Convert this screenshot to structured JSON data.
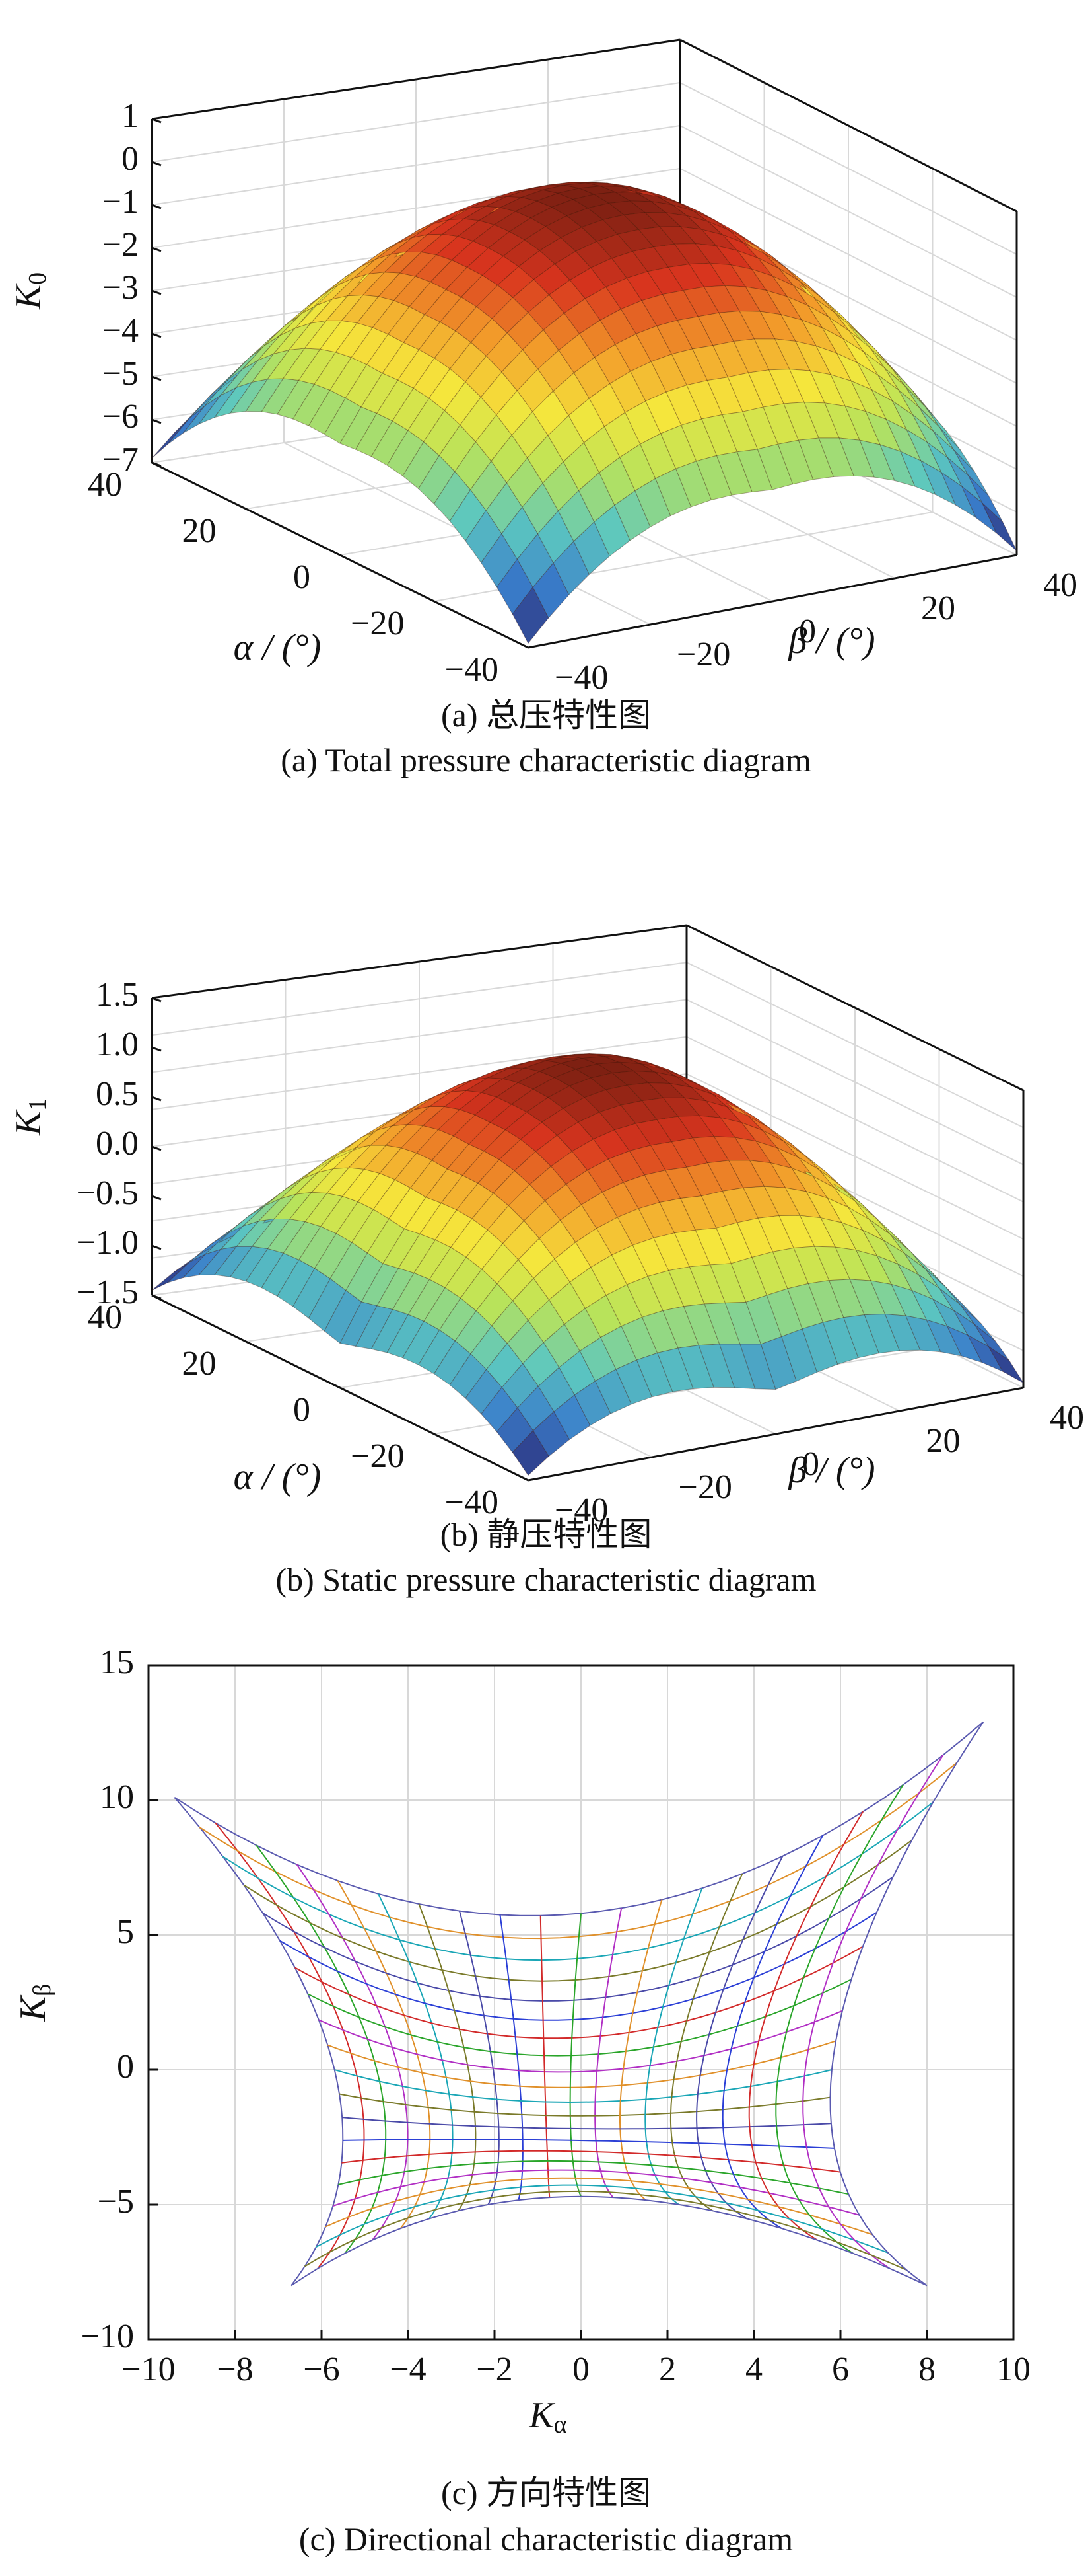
{
  "panel_a": {
    "caption_cn": "(a) 总压特性图",
    "caption_en": "(a) Total pressure characteristic diagram"
  },
  "panel_b": {
    "caption_cn": "(b) 静压特性图",
    "caption_en": "(b) Static pressure characteristic diagram"
  },
  "panel_c": {
    "caption_cn": "(c) 方向特性图",
    "caption_en": "(c) Directional characteristic diagram"
  },
  "chart_data": [
    {
      "type": "surface",
      "zlabel": "K",
      "zlabel_sub": "0",
      "xlabel": "α / (°)",
      "ylabel": "β / (°)",
      "z_ticks": [
        "1",
        "0",
        "−1",
        "−2",
        "−3",
        "−4",
        "−5",
        "−6",
        "−7"
      ],
      "zlim": [
        -7,
        1
      ],
      "alpha_ticks": [
        "40",
        "20",
        "0",
        "−20",
        "−40"
      ],
      "beta_ticks": [
        "−40",
        "−20",
        "0",
        "20",
        "40"
      ],
      "alpha_range": [
        -40,
        40
      ],
      "beta_range": [
        -40,
        40
      ],
      "z_peak": 0.4,
      "z_edge_mid": -4.4,
      "z_corner": -6.9,
      "colormap": [
        "#2a1e6b",
        "#3a7ecb",
        "#5cc7c0",
        "#b9e35a",
        "#f5e63c",
        "#f29a2a",
        "#d8341e",
        "#7a1f12"
      ]
    },
    {
      "type": "surface",
      "zlabel": "K",
      "zlabel_sub": "1",
      "xlabel": "α / (°)",
      "ylabel": "β / (°)",
      "z_ticks": [
        "1.5",
        "1.0",
        "0.5",
        "0.0",
        "−0.5",
        "−1.0",
        "−1.5"
      ],
      "zlim": [
        -1.5,
        1.5
      ],
      "alpha_ticks": [
        "40",
        "20",
        "0",
        "−20",
        "−40"
      ],
      "beta_ticks": [
        "−40",
        "−20",
        "0",
        "20",
        "40"
      ],
      "alpha_range": [
        -40,
        40
      ],
      "beta_range": [
        -40,
        40
      ],
      "z_peak": 1.35,
      "z_edge_mid": -1.05,
      "z_corner": -1.45,
      "colormap": [
        "#2a1e6b",
        "#3a7ecb",
        "#5cc7c0",
        "#b9e35a",
        "#f5e63c",
        "#f29a2a",
        "#d8341e",
        "#7a1f12"
      ]
    },
    {
      "type": "grid-mesh",
      "xlabel": "K",
      "xlabel_sub": "α",
      "ylabel": "K",
      "ylabel_sub": "β",
      "x_ticks": [
        "−10",
        "−8",
        "−6",
        "−4",
        "−2",
        "0",
        "2",
        "4",
        "6",
        "8",
        "10"
      ],
      "y_ticks": [
        "15",
        "10",
        "5",
        "0",
        "−5",
        "−10"
      ],
      "xlim": [
        -10,
        10
      ],
      "ylim": [
        -10,
        15
      ],
      "corners": {
        "top_left": [
          -9.4,
          10.1
        ],
        "top_right": [
          9.3,
          12.9
        ],
        "bottom_right": [
          8.0,
          -8.0
        ],
        "bottom_left": [
          -6.7,
          -8.0
        ]
      },
      "edge_midpoints": {
        "top": [
          0,
          5.8
        ],
        "right": [
          5.8,
          0.0
        ],
        "bottom": [
          0,
          -4.7
        ],
        "left": [
          -5.7,
          0.0
        ]
      },
      "mesh_lines": 21,
      "grid": true,
      "line_colors": [
        "#2b3fd6",
        "#d22a2a",
        "#2aa52a",
        "#b12fc4",
        "#e0902a",
        "#1aa6b6",
        "#7a7a2a",
        "#4a4aa8"
      ]
    }
  ]
}
